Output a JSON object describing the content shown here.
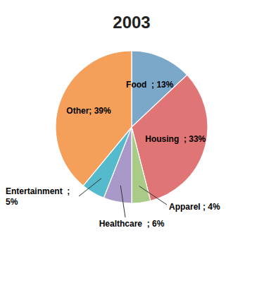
{
  "chart_data": {
    "type": "pie",
    "title": "2003",
    "categories": [
      "Food",
      "Housing",
      "Apparel",
      "Healthcare",
      "Entertainment",
      "Other"
    ],
    "values": [
      13,
      33,
      4,
      6,
      5,
      39
    ],
    "colors": [
      "#7BA7C9",
      "#E07575",
      "#AACA88",
      "#A899C8",
      "#55BBCC",
      "#F5A05A"
    ],
    "data_labels": true,
    "value_labels": [
      "Food  ; 13%",
      "Housing  ; 33%",
      "Apparel ; 4%",
      "Healthcare  ; 6%",
      "Entertainment  ;\n5%",
      "Other; 39%"
    ]
  }
}
